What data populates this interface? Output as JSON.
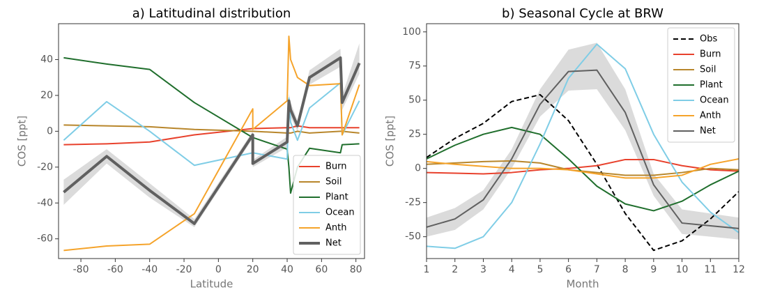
{
  "chart_data": [
    {
      "type": "line",
      "title": "a) Latitudinal distribution",
      "xlabel": "Latitude",
      "ylabel": "COS [ppt]",
      "x": [
        -90,
        -65,
        -40,
        -14,
        20,
        20,
        40,
        41,
        42,
        46,
        53,
        71,
        72,
        82
      ],
      "xlim": [
        -93,
        85
      ],
      "ylim": [
        -71,
        60
      ],
      "xticks": [
        -80,
        -60,
        -40,
        -20,
        0,
        20,
        40,
        60,
        80
      ],
      "yticks": [
        -60,
        -40,
        -20,
        0,
        20,
        40
      ],
      "legend": "lower right",
      "series": [
        {
          "name": "Burn",
          "color": "#e8412c",
          "values": [
            -7.5,
            -7,
            -6,
            -2,
            1.5,
            1.5,
            2,
            2,
            2,
            3,
            2,
            2,
            2,
            2
          ]
        },
        {
          "name": "Soil",
          "color": "#b8862b",
          "values": [
            3.5,
            3,
            2.5,
            1,
            0,
            0,
            -1,
            -1,
            -1,
            0,
            -1,
            0,
            0,
            -1
          ]
        },
        {
          "name": "Plant",
          "color": "#1f6e2c",
          "values": [
            41,
            37.5,
            34.5,
            16,
            -3.5,
            -3.5,
            -10,
            -20,
            -34.5,
            -20,
            -9.5,
            -12,
            -7.5,
            -7
          ]
        },
        {
          "name": "Ocean",
          "color": "#7fcde6",
          "values": [
            -5,
            16.5,
            0,
            -19,
            -12,
            -12,
            -15.5,
            18.5,
            5,
            -5,
            13,
            27,
            -2,
            17
          ]
        },
        {
          "name": "Anth",
          "color": "#f5a32a",
          "values": [
            -66.5,
            -64,
            -63,
            -46,
            12.5,
            1,
            17,
            53,
            40,
            30,
            25.5,
            26.5,
            -2,
            26
          ]
        },
        {
          "name": "Net",
          "color": "#606060",
          "width": 4,
          "values": [
            -34,
            -14,
            -33,
            -51.5,
            -2,
            -18,
            -6,
            17,
            12,
            3,
            30,
            41,
            16,
            38
          ],
          "band_lower": [
            -41,
            -18,
            -37,
            -53.5,
            -4,
            -20,
            -9,
            13,
            8,
            0,
            26,
            36,
            12,
            32
          ],
          "band_upper": [
            -27,
            -10,
            -29,
            -49,
            0,
            -16,
            -3,
            21,
            16,
            6,
            34,
            46,
            20,
            49
          ]
        }
      ]
    },
    {
      "type": "line",
      "title": "b) Seasonal Cycle at BRW",
      "xlabel": "Month",
      "ylabel": "COS [ppt]",
      "x": [
        1,
        2,
        3,
        4,
        5,
        6,
        7,
        8,
        9,
        10,
        11,
        12
      ],
      "xlim": [
        1,
        12
      ],
      "ylim": [
        -66,
        106
      ],
      "xticks": [
        1,
        2,
        3,
        4,
        5,
        6,
        7,
        8,
        9,
        10,
        11,
        12
      ],
      "yticks": [
        -50,
        -25,
        0,
        25,
        50,
        75,
        100
      ],
      "legend": "upper right",
      "series": [
        {
          "name": "Obs",
          "color": "#000000",
          "dashed": true,
          "values": [
            8,
            22,
            33,
            49,
            54,
            35,
            3,
            -33,
            -60,
            -53,
            -37,
            -17
          ]
        },
        {
          "name": "Burn",
          "color": "#e8412c",
          "values": [
            -3,
            -3.5,
            -4,
            -3,
            -1,
            0,
            2,
            6.5,
            6.5,
            2,
            -1,
            -2
          ]
        },
        {
          "name": "Soil",
          "color": "#b8862b",
          "values": [
            3,
            4,
            5,
            5.5,
            4,
            -1,
            -3,
            -5,
            -5,
            -3,
            0,
            -1
          ]
        },
        {
          "name": "Plant",
          "color": "#1f6e2c",
          "values": [
            7,
            17,
            25,
            30,
            25,
            7,
            -13,
            -26,
            -31,
            -24,
            -12,
            -2
          ]
        },
        {
          "name": "Ocean",
          "color": "#7fcde6",
          "values": [
            -57,
            -58.5,
            -50,
            -25,
            18,
            66,
            91,
            73,
            25,
            -10,
            -32,
            -47
          ]
        },
        {
          "name": "Anth",
          "color": "#f5a32a",
          "values": [
            5,
            3,
            1.5,
            0,
            0,
            -1,
            -4,
            -7,
            -7,
            -5,
            3,
            7
          ]
        },
        {
          "name": "Net",
          "color": "#606060",
          "width": 2,
          "values": [
            -43,
            -37,
            -23,
            7,
            47,
            71,
            72,
            41,
            -12,
            -40,
            -42,
            -44
          ],
          "band_lower": [
            -50,
            -45,
            -30,
            0,
            38,
            57,
            58,
            28,
            -20,
            -48,
            -50,
            -52
          ],
          "band_upper": [
            -36,
            -29,
            -16,
            14,
            58,
            87,
            92,
            58,
            -4,
            -30,
            -33,
            -36
          ]
        }
      ]
    }
  ]
}
